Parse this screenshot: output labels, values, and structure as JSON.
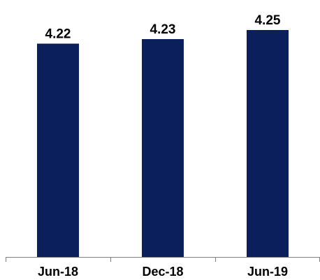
{
  "chart_data": {
    "type": "bar",
    "categories": [
      "Jun-18",
      "Dec-18",
      "Jun-19"
    ],
    "values": [
      4.22,
      4.23,
      4.25
    ],
    "data_labels": [
      "4.22",
      "4.23",
      "4.25"
    ],
    "ylim": [
      3.75,
      4.27
    ],
    "grid": false,
    "legend": "none",
    "bar_color": "#0a1f5c"
  }
}
